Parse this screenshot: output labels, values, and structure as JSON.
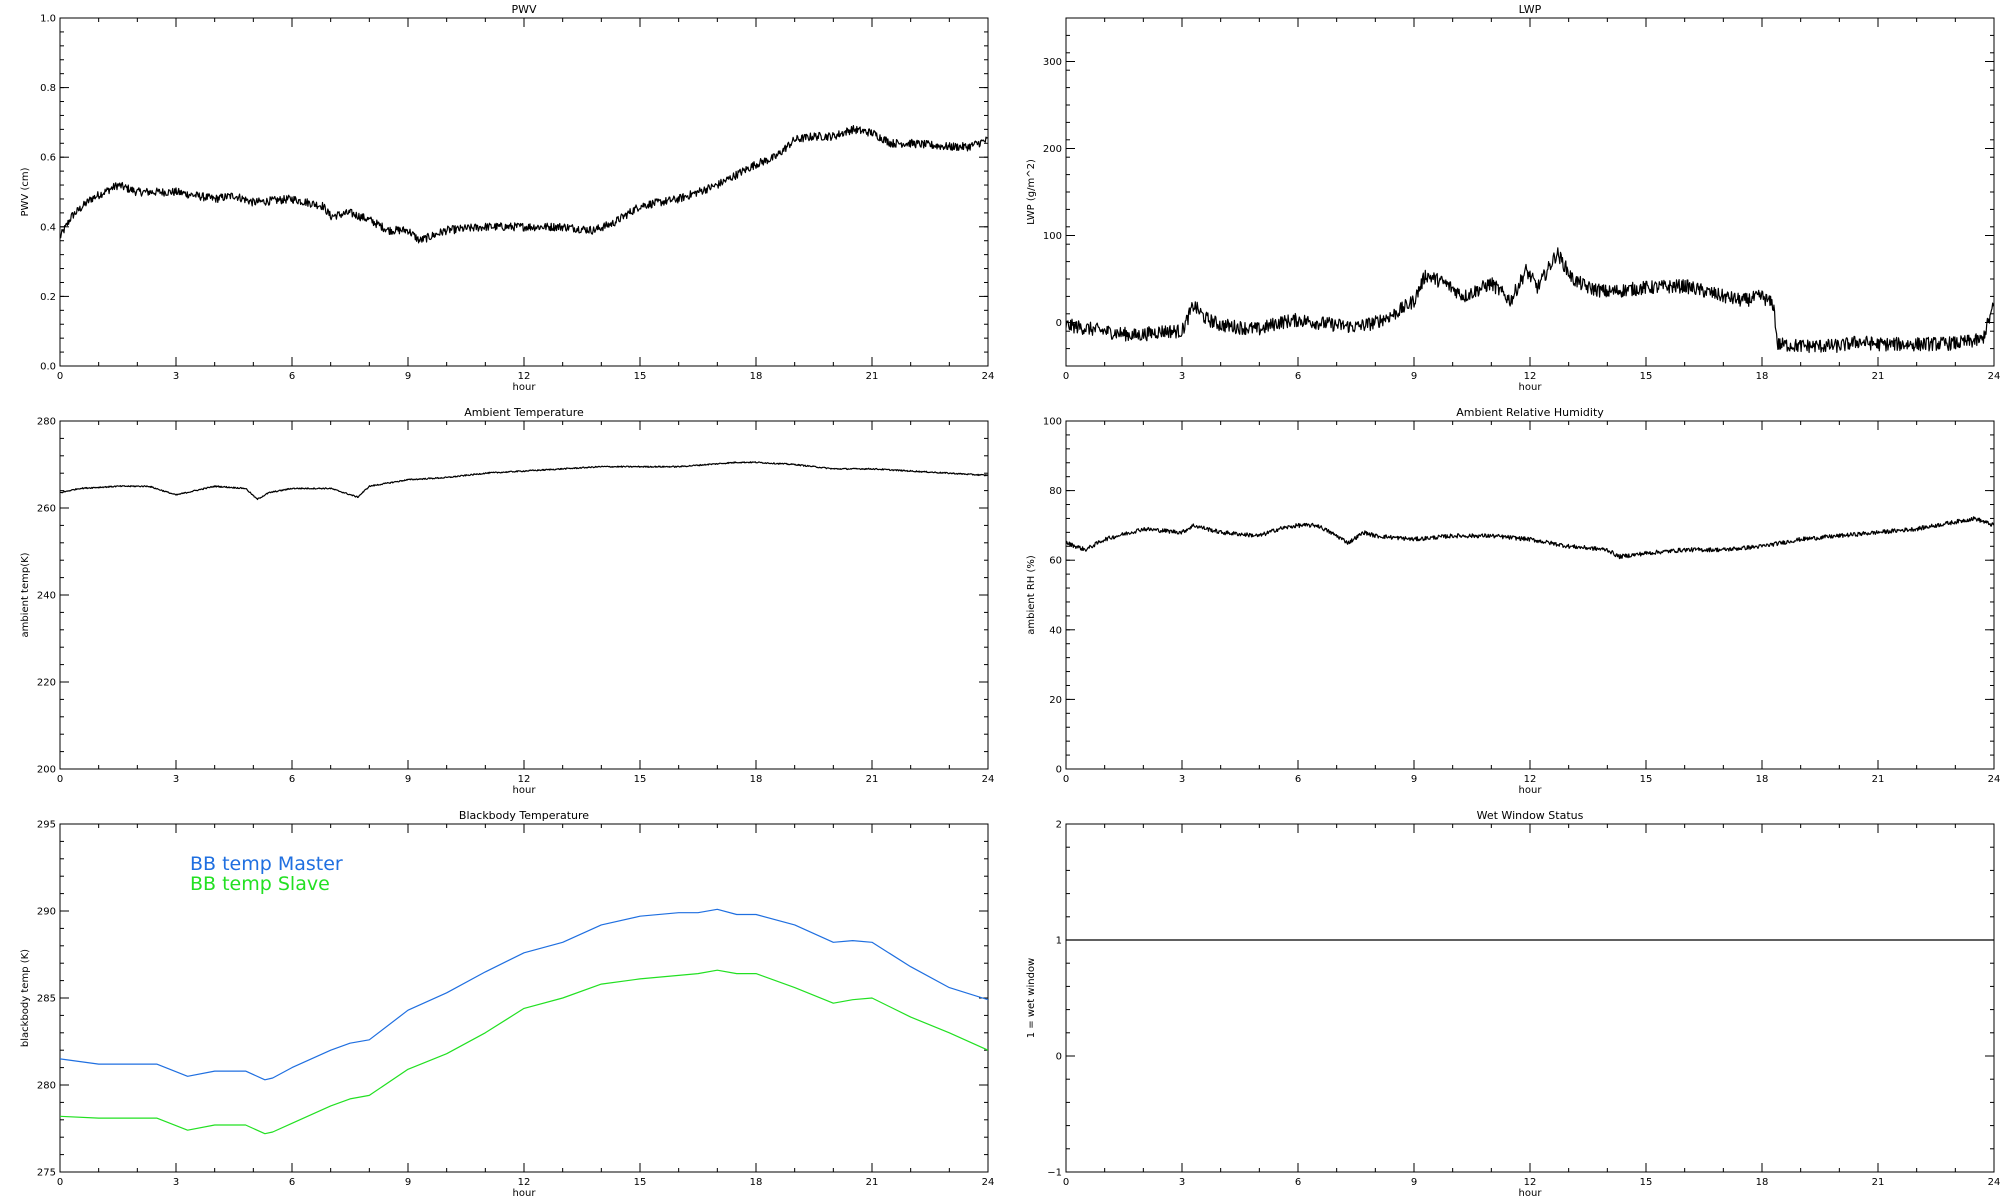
{
  "chart_data": [
    {
      "id": "pwv",
      "type": "line",
      "title": "PWV",
      "xlabel": "hour",
      "ylabel": "PWV (cm)",
      "xlim": [
        0,
        24
      ],
      "ylim": [
        0.0,
        1.0
      ],
      "xticks": [
        0,
        3,
        6,
        9,
        12,
        15,
        18,
        21,
        24
      ],
      "yticks": [
        0.0,
        0.2,
        0.4,
        0.6,
        0.8,
        1.0
      ],
      "ytick_labels": [
        "0.0",
        "0.2",
        "0.4",
        "0.6",
        "0.8",
        "1.0"
      ],
      "grid": false,
      "series": [
        {
          "color": "#000000",
          "noise": 0.012,
          "x": [
            0,
            0.3,
            0.8,
            1.5,
            2.0,
            3.0,
            4.0,
            4.5,
            5.0,
            6.0,
            6.8,
            7.0,
            7.5,
            8.0,
            8.5,
            9.0,
            9.3,
            10.0,
            11.0,
            12.0,
            13.0,
            13.8,
            14.3,
            15.0,
            16.0,
            16.5,
            17.0,
            17.5,
            18.0,
            18.5,
            19.0,
            19.5,
            20.0,
            20.5,
            21.0,
            21.5,
            22.0,
            23.0,
            23.5,
            24.0
          ],
          "y": [
            0.37,
            0.43,
            0.48,
            0.52,
            0.5,
            0.5,
            0.48,
            0.49,
            0.47,
            0.48,
            0.46,
            0.43,
            0.44,
            0.42,
            0.39,
            0.39,
            0.36,
            0.39,
            0.4,
            0.4,
            0.4,
            0.39,
            0.41,
            0.46,
            0.48,
            0.5,
            0.52,
            0.55,
            0.58,
            0.6,
            0.65,
            0.66,
            0.66,
            0.68,
            0.67,
            0.64,
            0.64,
            0.63,
            0.63,
            0.65
          ]
        }
      ]
    },
    {
      "id": "lwp",
      "type": "line",
      "title": "LWP",
      "xlabel": "hour",
      "ylabel": "LWP (g/m^2)",
      "xlim": [
        0,
        24
      ],
      "ylim": [
        -50,
        350
      ],
      "xticks": [
        0,
        3,
        6,
        9,
        12,
        15,
        18,
        21,
        24
      ],
      "yticks": [
        0,
        100,
        200,
        300
      ],
      "ytick_labels": [
        "0",
        "100",
        "200",
        "300"
      ],
      "grid": false,
      "series": [
        {
          "color": "#000000",
          "noise": 8,
          "x": [
            0,
            1.0,
            1.8,
            2.5,
            3.0,
            3.3,
            3.6,
            4.0,
            5.0,
            5.5,
            6.0,
            7.0,
            7.5,
            8.0,
            8.5,
            9.0,
            9.3,
            9.8,
            10.3,
            11.0,
            11.5,
            11.9,
            12.2,
            12.7,
            13.1,
            13.5,
            14.0,
            15.0,
            16.0,
            17.0,
            17.5,
            18.0,
            18.3,
            18.4,
            19.0,
            20.0,
            20.5,
            21.0,
            22.0,
            23.0,
            23.7,
            24.0
          ],
          "y": [
            -3,
            -10,
            -15,
            -10,
            -10,
            20,
            5,
            -3,
            -8,
            0,
            3,
            -3,
            -5,
            0,
            10,
            25,
            55,
            45,
            30,
            45,
            25,
            60,
            40,
            80,
            50,
            40,
            35,
            40,
            42,
            30,
            25,
            30,
            20,
            -25,
            -27,
            -27,
            -22,
            -25,
            -25,
            -24,
            -20,
            20
          ]
        }
      ]
    },
    {
      "id": "ambient-temperature",
      "type": "line",
      "title": "Ambient Temperature",
      "xlabel": "hour",
      "ylabel": "ambient temp(K)",
      "xlim": [
        0,
        24
      ],
      "ylim": [
        200,
        280
      ],
      "xticks": [
        0,
        3,
        6,
        9,
        12,
        15,
        18,
        21,
        24
      ],
      "yticks": [
        200,
        220,
        240,
        260,
        280
      ],
      "ytick_labels": [
        "200",
        "220",
        "240",
        "260",
        "280"
      ],
      "grid": false,
      "series": [
        {
          "color": "#000000",
          "noise": 0.15,
          "x": [
            0,
            0.5,
            1.5,
            2.3,
            3.0,
            3.5,
            4.0,
            4.8,
            5.1,
            5.4,
            6.0,
            7.0,
            7.7,
            8.0,
            9.0,
            10.0,
            11.0,
            12.0,
            14.0,
            16.0,
            17.5,
            18.0,
            19.0,
            20.0,
            21.0,
            22.0,
            23.0,
            24.0
          ],
          "y": [
            263.5,
            264.5,
            265,
            265,
            263,
            264,
            265,
            264.5,
            262,
            263.5,
            264.5,
            264.5,
            262.5,
            265,
            266.5,
            267,
            268,
            268.5,
            269.5,
            269.5,
            270.5,
            270.5,
            270,
            269,
            269,
            268.5,
            268,
            267.5
          ]
        }
      ]
    },
    {
      "id": "ambient-relative-humidity",
      "type": "line",
      "title": "Ambient Relative Humidity",
      "xlabel": "hour",
      "ylabel": "ambient RH (%)",
      "xlim": [
        0,
        24
      ],
      "ylim": [
        0,
        100
      ],
      "xticks": [
        0,
        3,
        6,
        9,
        12,
        15,
        18,
        21,
        24
      ],
      "yticks": [
        0,
        20,
        40,
        60,
        80,
        100
      ],
      "ytick_labels": [
        "0",
        "20",
        "40",
        "60",
        "80",
        "100"
      ],
      "grid": false,
      "series": [
        {
          "color": "#000000",
          "noise": 0.6,
          "x": [
            0,
            0.5,
            1.0,
            2.0,
            3.0,
            3.3,
            4.0,
            5.0,
            5.5,
            6.0,
            6.5,
            7.0,
            7.3,
            7.7,
            8.0,
            9.0,
            10.0,
            11.0,
            12.0,
            13.0,
            14.0,
            14.3,
            15.0,
            16.0,
            17.0,
            18.0,
            19.0,
            20.0,
            21.0,
            22.0,
            23.0,
            23.5,
            24.0
          ],
          "y": [
            65,
            63,
            66,
            69,
            68,
            70,
            68,
            67,
            69,
            70,
            70,
            67,
            65,
            68,
            67,
            66,
            67,
            67,
            66,
            64,
            63,
            61,
            62,
            63,
            63,
            64,
            66,
            67,
            68,
            69,
            71,
            72,
            70
          ]
        }
      ]
    },
    {
      "id": "blackbody-temperature",
      "type": "line",
      "title": "Blackbody Temperature",
      "xlabel": "hour",
      "ylabel": "blackbody temp (K)",
      "xlim": [
        0,
        24
      ],
      "ylim": [
        275,
        295
      ],
      "xticks": [
        0,
        3,
        6,
        9,
        12,
        15,
        18,
        21,
        24
      ],
      "yticks": [
        275,
        280,
        285,
        290,
        295
      ],
      "ytick_labels": [
        "275",
        "280",
        "285",
        "290",
        "295"
      ],
      "grid": false,
      "legend": "top-left",
      "series": [
        {
          "name": "BB temp Master",
          "color": "#1f6fe0",
          "noise": 0,
          "x": [
            0,
            1.0,
            2.0,
            2.5,
            3.3,
            4.0,
            4.8,
            5.3,
            5.5,
            6.0,
            7.0,
            7.5,
            8.0,
            9.0,
            10.0,
            11.0,
            12.0,
            13.0,
            14.0,
            15.0,
            16.0,
            16.5,
            17.0,
            17.5,
            18.0,
            19.0,
            20.0,
            20.5,
            21.0,
            22.0,
            23.0,
            24.0
          ],
          "y": [
            281.5,
            281.2,
            281.2,
            281.2,
            280.5,
            280.8,
            280.8,
            280.3,
            280.4,
            281,
            282,
            282.4,
            282.6,
            284.3,
            285.3,
            286.5,
            287.6,
            288.2,
            289.2,
            289.7,
            289.9,
            289.9,
            290.1,
            289.8,
            289.8,
            289.2,
            288.2,
            288.3,
            288.2,
            286.8,
            285.6,
            284.9
          ]
        },
        {
          "name": "BB temp Slave",
          "color": "#22e022",
          "noise": 0,
          "x": [
            0,
            1.0,
            2.0,
            2.5,
            3.3,
            4.0,
            4.8,
            5.3,
            5.5,
            6.0,
            7.0,
            7.5,
            8.0,
            9.0,
            10.0,
            11.0,
            12.0,
            13.0,
            14.0,
            15.0,
            16.0,
            16.5,
            17.0,
            17.5,
            18.0,
            19.0,
            20.0,
            20.5,
            21.0,
            22.0,
            23.0,
            24.0
          ],
          "y": [
            278.2,
            278.1,
            278.1,
            278.1,
            277.4,
            277.7,
            277.7,
            277.2,
            277.3,
            277.8,
            278.8,
            279.2,
            279.4,
            280.9,
            281.8,
            283,
            284.4,
            285,
            285.8,
            286.1,
            286.3,
            286.4,
            286.6,
            286.4,
            286.4,
            285.6,
            284.7,
            284.9,
            285,
            283.9,
            283,
            282
          ]
        }
      ]
    },
    {
      "id": "wet-window-status",
      "type": "line",
      "title": "Wet Window Status",
      "xlabel": "hour",
      "ylabel": "1 = wet window",
      "xlim": [
        0,
        24
      ],
      "ylim": [
        -1,
        2
      ],
      "xticks": [
        0,
        3,
        6,
        9,
        12,
        15,
        18,
        21,
        24
      ],
      "yticks": [
        -1,
        0,
        1,
        2
      ],
      "ytick_labels": [
        "−1",
        "0",
        "1",
        "2"
      ],
      "grid": false,
      "series": [
        {
          "color": "#000000",
          "noise": 0,
          "x": [
            0,
            24
          ],
          "y": [
            1,
            1
          ]
        }
      ]
    }
  ]
}
